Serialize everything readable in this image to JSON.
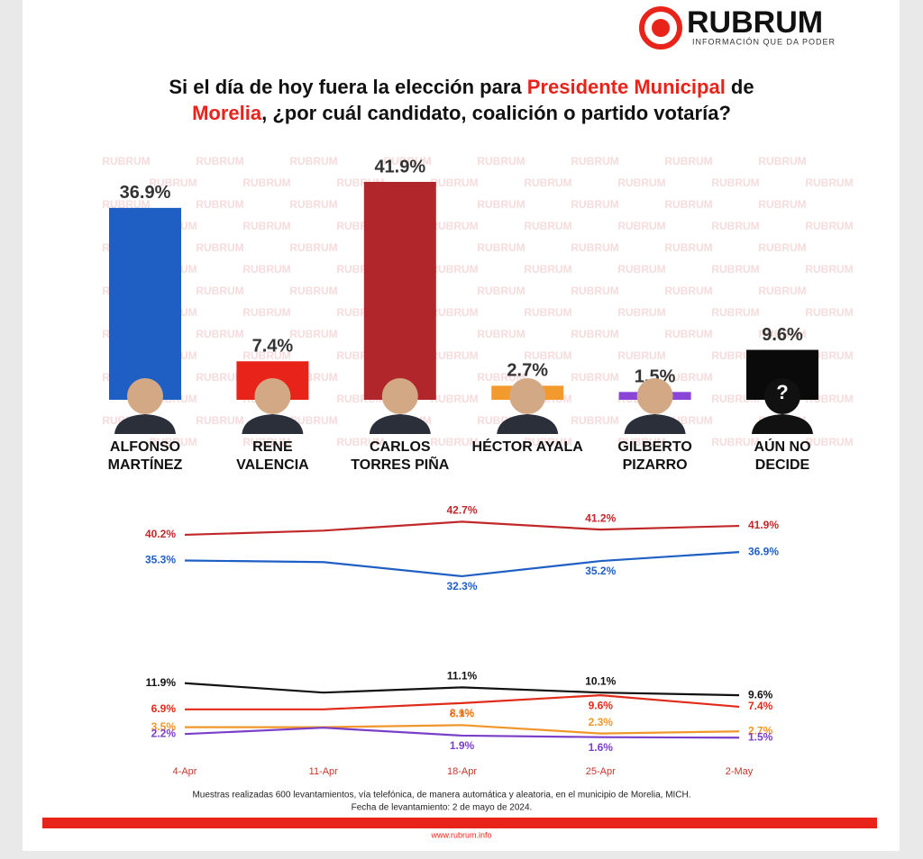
{
  "header": {
    "brand": "RUBRUM",
    "tagline": "INFORMACIÓN QUE DA PODER",
    "watermark": "RUBRUM"
  },
  "chart_data": [
    {
      "type": "bar",
      "title": [
        [
          {
            "text": "Si el día de hoy fuera la elección para ",
            "color": "#111111"
          },
          {
            "text": "Presidente Municipal",
            "color": "#e8231a"
          },
          {
            "text": " de",
            "color": "#111111"
          }
        ],
        [
          {
            "text": "Morelia",
            "color": "#e8231a"
          },
          {
            "text": ", ¿por cuál candidato, coalición o partido votaría?",
            "color": "#111111"
          }
        ]
      ],
      "categories": [
        "ALFONSO MARTÍNEZ",
        "RENE VALENCIA",
        "CARLOS TORRES PIÑA",
        "HÉCTOR AYALA",
        "GILBERTO PIZARRO",
        "AÚN NO DECIDE"
      ],
      "values": [
        36.9,
        7.4,
        41.9,
        2.7,
        1.5,
        9.6
      ],
      "value_labels": [
        "36.9%",
        "7.4%",
        "41.9%",
        "2.7%",
        "1.5%",
        "9.6%"
      ],
      "colors": [
        "#1f5fc4",
        "#e8231a",
        "#b1262a",
        "#f39a2e",
        "#8a44d6",
        "#0a0a0a"
      ],
      "unknown_icon": "?"
    },
    {
      "type": "line",
      "categories": [
        "4-Apr",
        "11-Apr",
        "18-Apr",
        "25-Apr",
        "2-May"
      ],
      "ylim": [
        0,
        45
      ],
      "series": [
        {
          "color": "#c0282a",
          "values": [
            40.2,
            41.0,
            42.7,
            41.2,
            41.9
          ],
          "value_labels": [
            "40.2%",
            null,
            "42.7%",
            "41.2%",
            "41.9%"
          ]
        },
        {
          "color": "#1f5fc4",
          "values": [
            35.3,
            35.0,
            32.3,
            35.2,
            36.9
          ],
          "value_labels": [
            "35.3%",
            null,
            "32.3%",
            "35.2%",
            "36.9%"
          ]
        },
        {
          "color": "#111111",
          "values": [
            11.9,
            10.1,
            11.1,
            10.1,
            9.6
          ],
          "value_labels": [
            "11.9%",
            null,
            "11.1%",
            "10.1%",
            "9.6%"
          ]
        },
        {
          "color": "#e02a1a",
          "values": [
            6.9,
            6.9,
            8.1,
            9.6,
            7.4
          ],
          "value_labels": [
            "6.9%",
            null,
            "8.1%",
            "9.6%",
            "7.4%"
          ]
        },
        {
          "color": "#f0962a",
          "values": [
            3.5,
            3.5,
            3.9,
            2.3,
            2.7
          ],
          "value_labels": [
            "3.5%",
            null,
            "3.9%",
            "2.3%",
            "2.7%"
          ]
        },
        {
          "color": "#7a3fc8",
          "values": [
            2.2,
            3.4,
            1.9,
            1.6,
            1.5
          ],
          "value_labels": [
            "2.2%",
            null,
            "1.9%",
            "1.6%",
            "1.5%"
          ]
        }
      ]
    }
  ],
  "footer": {
    "notes": [
      "Muestras realizadas 600 levantamientos, vía telefónica, de manera automática y aleatoria, en el municipio de Morelia, MICH.",
      "Fecha de levantamiento: 2 de mayo de 2024."
    ],
    "website": "www.rubrum.info"
  }
}
